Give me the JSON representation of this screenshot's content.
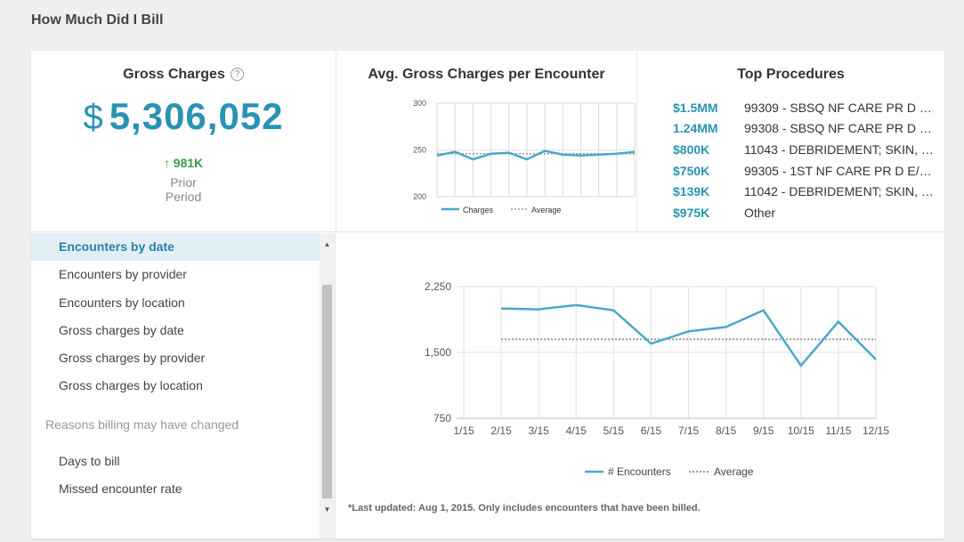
{
  "page": {
    "title": "How Much Did I Bill"
  },
  "gross_charges": {
    "title": "Gross Charges",
    "help_icon": "?",
    "currency": "$",
    "value": "5,306,052",
    "delta": "981K",
    "delta_arrow": "↑",
    "prior_line1": "Prior",
    "prior_line2": "Period"
  },
  "avg_chart": {
    "title": "Avg. Gross Charges per Encounter",
    "legend_series": "Charges",
    "legend_average": "Average"
  },
  "top_procedures": {
    "title": "Top Procedures",
    "items": [
      {
        "amount": "$1.5MM",
        "desc": "99309 - SBSQ NF CARE PR D E/..."
      },
      {
        "amount": "1.24MM",
        "desc": "99308 - SBSQ NF CARE PR D E/..."
      },
      {
        "amount": "$800K",
        "desc": "11043 - DEBRIDEMENT; SKIN, S..."
      },
      {
        "amount": "$750K",
        "desc": "99305 - 1ST NF CARE PR D E/M ..."
      },
      {
        "amount": "$139K",
        "desc": "11042 - DEBRIDEMENT; SKIN, &..."
      },
      {
        "amount": "$975K",
        "desc": "Other"
      }
    ]
  },
  "sidebar": {
    "items": [
      {
        "label": "Encounters by date"
      },
      {
        "label": "Encounters by provider"
      },
      {
        "label": "Encounters by location"
      },
      {
        "label": "Gross charges by date"
      },
      {
        "label": "Gross charges by provider"
      },
      {
        "label": "Gross charges by location"
      }
    ],
    "section_title": "Reasons billing may have changed",
    "reason_items": [
      {
        "label": "Days to bill"
      },
      {
        "label": "Missed encounter rate"
      }
    ]
  },
  "footnote": "*Last updated: Aug 1, 2015. Only includes encounters that have been billed.",
  "colors": {
    "accent": "#2a93b4",
    "series": "#4aa8c8",
    "positive": "#3c9a46",
    "average": "#999999"
  },
  "chart_data": [
    {
      "type": "line",
      "title": "Avg. Gross Charges per Encounter",
      "x": [
        1,
        2,
        3,
        4,
        5,
        6,
        7,
        8,
        9,
        10,
        11,
        12
      ],
      "series": [
        {
          "name": "Charges",
          "values": [
            244,
            248,
            240,
            246,
            247,
            240,
            249,
            245,
            244,
            245,
            246,
            248
          ]
        },
        {
          "name": "Average",
          "values": [
            246,
            246,
            246,
            246,
            246,
            246,
            246,
            246,
            246,
            246,
            246,
            246
          ]
        }
      ],
      "yticks": [
        "200",
        "250",
        "300"
      ],
      "ylim": [
        200,
        300
      ],
      "legend": "bottom"
    },
    {
      "type": "line",
      "title": "",
      "categories": [
        "1/15",
        "2/15",
        "3/15",
        "4/15",
        "5/15",
        "6/15",
        "7/15",
        "8/15",
        "9/15",
        "10/15",
        "11/15",
        "12/15"
      ],
      "series": [
        {
          "name": "# Encounters",
          "values": [
            null,
            2000,
            1990,
            2040,
            1980,
            1600,
            1740,
            1790,
            1980,
            1350,
            1850,
            1420
          ]
        },
        {
          "name": "Average",
          "values": [
            null,
            1650,
            1650,
            1650,
            1650,
            1650,
            1650,
            1650,
            1650,
            1650,
            1650,
            1650
          ]
        }
      ],
      "yticks": [
        "750",
        "1,500",
        "2,250"
      ],
      "ylim": [
        750,
        2250
      ],
      "legend": "bottom"
    }
  ]
}
